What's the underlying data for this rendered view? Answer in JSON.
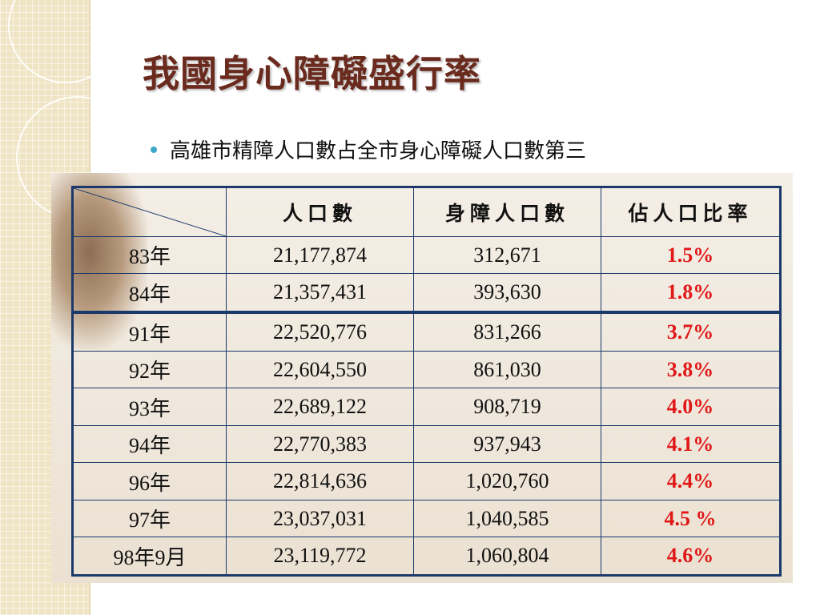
{
  "slide": {
    "title": "我國身心障礙盛行率",
    "bullet": "高雄市精障人口數占全市身心障礙人口數第三"
  },
  "table": {
    "headers": [
      "人口數",
      "身障人口數",
      "佔人口比率"
    ],
    "rows": [
      {
        "year": "83年",
        "population": "21,177,874",
        "disabled": "312,671",
        "rate": "1.5%"
      },
      {
        "year": "84年",
        "population": "21,357,431",
        "disabled": "393,630",
        "rate": "1.8%"
      },
      {
        "year": "91年",
        "population": "22,520,776",
        "disabled": "831,266",
        "rate": "3.7%"
      },
      {
        "year": "92年",
        "population": "22,604,550",
        "disabled": "861,030",
        "rate": "3.8%"
      },
      {
        "year": "93年",
        "population": "22,689,122",
        "disabled": "908,719",
        "rate": "4.0%"
      },
      {
        "year": "94年",
        "population": "22,770,383",
        "disabled": "937,943",
        "rate": "4.1%"
      },
      {
        "year": "96年",
        "population": "22,814,636",
        "disabled": "1,020,760",
        "rate": "4.4%"
      },
      {
        "year": "97年",
        "population": "23,037,031",
        "disabled": "1,040,585",
        "rate": "4.5 %"
      },
      {
        "year": "98年9月",
        "population": "23,119,772",
        "disabled": "1,060,804",
        "rate": "4.6%"
      }
    ]
  },
  "colors": {
    "title": "#6b2a1e",
    "table_border": "#1b3a6b",
    "rate_text": "#e01818",
    "bullet": "#3fa7c7"
  }
}
